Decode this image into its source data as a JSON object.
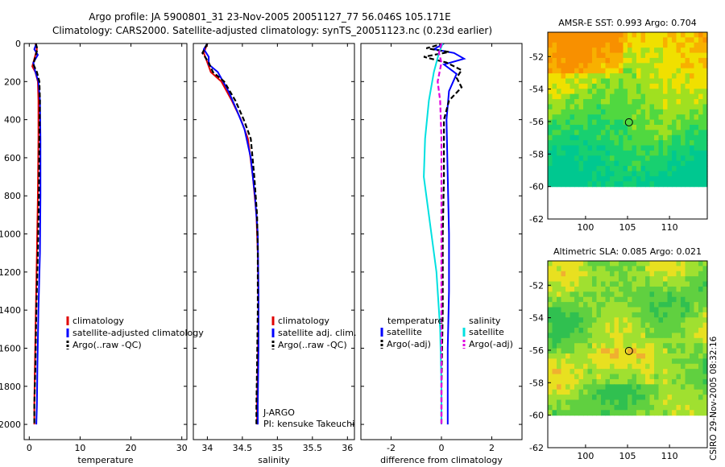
{
  "header": {
    "line1": "Argo profile: JA 5900801_31 23-Nov-2005 20051127_77 56.046S 105.171E",
    "line2": "Climatology: CARS2000. Satellite-adjusted climatology: synTS_20051123.nc (0.23d earlier)"
  },
  "footer": {
    "credit": "CSIRO 29-Nov-2005 08:32:16"
  },
  "colors": {
    "climatology": "#e00000",
    "satellite": "#0000ff",
    "argo": "#000000",
    "satellite_salinity_diff": "#00e0e0",
    "argo_salinity_diff": "#e000e0"
  },
  "chart_data": [
    {
      "type": "line",
      "id": "temperature",
      "xlabel": "temperature",
      "xlim": [
        -1,
        31
      ],
      "ylim": [
        2080,
        0
      ],
      "xticks": [
        0,
        10,
        20,
        30
      ],
      "xtick_labels": [
        "0",
        "10",
        "20",
        "30"
      ],
      "yticks": [
        0,
        200,
        400,
        600,
        800,
        1000,
        1200,
        1400,
        1600,
        1800,
        2000
      ],
      "ytick_labels": [
        "0",
        "200",
        "400",
        "600",
        "800",
        "1000",
        "1200",
        "1400",
        "1600",
        "1800",
        "2000"
      ],
      "legend": [
        "climatology",
        "satellite-adjusted climatology",
        "Argo(..raw -QC)"
      ],
      "series": [
        {
          "name": "climatology",
          "style": "solid",
          "color": "#e00000",
          "x": [
            1.2,
            1.5,
            1.1,
            0.6,
            1.2,
            1.7,
            1.8,
            1.8,
            1.7,
            1.5,
            1.3,
            1.1,
            1.0,
            1.0
          ],
          "y": [
            0,
            30,
            70,
            120,
            150,
            200,
            300,
            500,
            800,
            1100,
            1400,
            1700,
            1900,
            2000
          ]
        },
        {
          "name": "satellite-adjusted climatology",
          "style": "solid",
          "color": "#0000ff",
          "x": [
            1.4,
            1.0,
            1.7,
            0.8,
            1.1,
            1.8,
            2.1,
            2.2,
            2.2,
            2.1,
            1.8,
            1.6,
            1.5,
            1.4
          ],
          "y": [
            0,
            30,
            60,
            100,
            140,
            200,
            300,
            500,
            800,
            1100,
            1400,
            1700,
            1900,
            2000
          ]
        },
        {
          "name": "Argo(..raw -QC)",
          "style": "dashed",
          "color": "#000000",
          "x": [
            1.3,
            1.6,
            1.2,
            0.8,
            1.5,
            2.0,
            2.1,
            2.0,
            1.9,
            1.7,
            1.4,
            1.2,
            1.0,
            1.0
          ],
          "y": [
            0,
            30,
            70,
            110,
            150,
            200,
            300,
            500,
            800,
            1100,
            1400,
            1700,
            1900,
            2000
          ]
        }
      ]
    },
    {
      "type": "line",
      "id": "salinity",
      "xlabel": "salinity",
      "xlim": [
        33.8,
        36.1
      ],
      "ylim": [
        2080,
        0
      ],
      "xticks": [
        34,
        34.5,
        35,
        35.5,
        36
      ],
      "xtick_labels": [
        "34",
        "34.5",
        "35",
        "35.5",
        "36"
      ],
      "legend": [
        "climatology",
        "satellite adj. clim.",
        "Argo(..raw -QC)"
      ],
      "annotation": [
        "J-ARGO",
        "PI: kensuke Takeuchi"
      ],
      "series": [
        {
          "name": "climatology",
          "style": "solid",
          "color": "#e00000",
          "x": [
            34.0,
            33.95,
            34.0,
            34.05,
            34.2,
            34.35,
            34.48,
            34.58,
            34.65,
            34.7,
            34.72,
            34.73,
            34.72,
            34.71,
            34.71
          ],
          "y": [
            0,
            50,
            100,
            150,
            200,
            300,
            400,
            500,
            700,
            900,
            1100,
            1400,
            1700,
            1900,
            2000
          ]
        },
        {
          "name": "satellite adj. clim.",
          "style": "solid",
          "color": "#0000ff",
          "x": [
            34.0,
            33.95,
            34.02,
            34.02,
            34.15,
            34.3,
            34.42,
            34.53,
            34.62,
            34.68,
            34.72,
            34.73,
            34.73,
            34.72,
            34.72
          ],
          "y": [
            0,
            30,
            70,
            110,
            150,
            250,
            350,
            450,
            600,
            800,
            1000,
            1300,
            1600,
            1900,
            2000
          ]
        },
        {
          "name": "Argo(..raw -QC)",
          "style": "dashed",
          "color": "#000000",
          "x": [
            34.0,
            33.93,
            34.02,
            34.08,
            34.24,
            34.4,
            34.52,
            34.62,
            34.67,
            34.71,
            34.72,
            34.72,
            34.71,
            34.7,
            34.7
          ],
          "y": [
            0,
            50,
            100,
            150,
            200,
            300,
            400,
            500,
            700,
            900,
            1100,
            1400,
            1700,
            1900,
            2000
          ]
        }
      ]
    },
    {
      "type": "line",
      "id": "difference",
      "xlabel": "difference from climatology",
      "xlim": [
        -3.2,
        3.2
      ],
      "ylim": [
        2080,
        0
      ],
      "xticks": [
        -2,
        0,
        2
      ],
      "xtick_labels": [
        "-2",
        "0",
        "2"
      ],
      "legend_temperature": {
        "title": "temperature",
        "items": [
          "satellite",
          "Argo(-adj)"
        ]
      },
      "legend_salinity": {
        "title": "salinity",
        "items": [
          "satellite",
          "Argo(-adj)"
        ]
      },
      "series": [
        {
          "name": "temperature satellite",
          "style": "solid",
          "color": "#0000ff",
          "x": [
            0.1,
            -0.3,
            0.5,
            0.9,
            0.1,
            0.6,
            0.3,
            0.2,
            0.25,
            0.3,
            0.3,
            0.25,
            0.25,
            0.25
          ],
          "y": [
            0,
            30,
            50,
            80,
            110,
            160,
            250,
            400,
            700,
            1000,
            1300,
            1600,
            1900,
            2000
          ]
        },
        {
          "name": "temperature Argo(-adj)",
          "style": "dashed",
          "color": "#000000",
          "x": [
            0.1,
            -0.6,
            0.3,
            -0.7,
            0.2,
            0.8,
            0.6,
            0.8,
            0.3,
            0.1,
            0.1,
            0.05,
            0.05,
            0.0,
            0.0
          ],
          "y": [
            0,
            25,
            45,
            70,
            100,
            140,
            180,
            230,
            300,
            400,
            700,
            1000,
            1400,
            1800,
            2000
          ]
        },
        {
          "name": "salinity satellite",
          "style": "solid",
          "color": "#00e0e0",
          "x": [
            0.05,
            -0.1,
            -0.3,
            -0.5,
            -0.65,
            -0.7,
            -0.5,
            -0.2,
            -0.05,
            0.0,
            0.0
          ],
          "y": [
            0,
            50,
            150,
            300,
            500,
            700,
            900,
            1200,
            1500,
            1800,
            2000
          ]
        },
        {
          "name": "salinity Argo(-adj)",
          "style": "dashed",
          "color": "#e000e0",
          "x": [
            0.0,
            -0.1,
            0.0,
            -0.15,
            -0.05,
            0.0,
            0.0,
            0.0,
            0.0
          ],
          "y": [
            0,
            50,
            100,
            200,
            300,
            500,
            1000,
            1500,
            2000
          ]
        }
      ]
    },
    {
      "type": "heatmap",
      "id": "sst-map",
      "title": "AMSR-E SST: 0.993 Argo: 0.704",
      "xlim": [
        95.5,
        114.5
      ],
      "ylim": [
        -62,
        -50.5
      ],
      "xticks": [
        100,
        105,
        110
      ],
      "xtick_labels": [
        "100",
        "105",
        "110"
      ],
      "yticks": [
        -52,
        -54,
        -56,
        -58,
        -60,
        -62
      ],
      "ytick_labels": [
        "-52",
        "-54",
        "-56",
        "-58",
        "-60",
        "-62"
      ],
      "data_ylim": [
        -60,
        -50.5
      ],
      "marker": {
        "lon": 105.171,
        "lat": -56.046
      },
      "palette": [
        "#00c890",
        "#18d070",
        "#50d840",
        "#a0e020",
        "#f0e000",
        "#f8b000",
        "#f89000"
      ]
    },
    {
      "type": "heatmap",
      "id": "sla-map",
      "title": "Altimetric SLA: 0.085 Argo: 0.021",
      "xlim": [
        95.5,
        114.5
      ],
      "ylim": [
        -62,
        -50.5
      ],
      "xticks": [
        100,
        105,
        110
      ],
      "xtick_labels": [
        "100",
        "105",
        "110"
      ],
      "yticks": [
        -52,
        -54,
        -56,
        -58,
        -60,
        -62
      ],
      "ytick_labels": [
        "-52",
        "-54",
        "-56",
        "-58",
        "-60",
        "-62"
      ],
      "data_ylim": [
        -60,
        -50.5
      ],
      "marker": {
        "lon": 105.171,
        "lat": -56.046
      },
      "palette": [
        "#30c050",
        "#60d040",
        "#a0e030",
        "#e8e020",
        "#f0b030"
      ]
    }
  ]
}
